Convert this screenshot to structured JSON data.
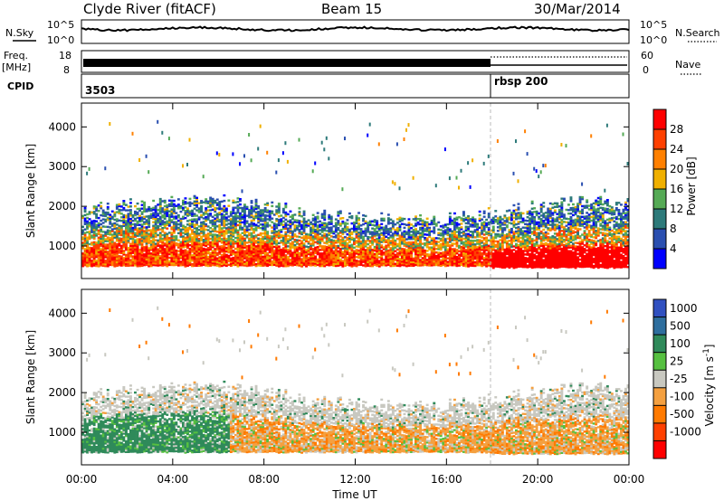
{
  "header": {
    "station": "Clyde River (fitACF)",
    "beam": "Beam 15",
    "date": "30/Mar/2014"
  },
  "strip_panels": {
    "nsky_label": "N.Sky",
    "nsky_top": "10^5",
    "nsky_bottom": "10^0",
    "nsearch_label": "N.Search",
    "nsearch_top": "10^5",
    "nsearch_bottom": "10^0",
    "freq_label": "Freq.",
    "freq_unit": "[MHz]",
    "freq_top": "18",
    "freq_bottom": "8",
    "nave_label": "Nave",
    "nave_top": "60",
    "nave_bottom": "0",
    "cpid_label": "CPID",
    "cpid_values": [
      "3503",
      "rbsp 200"
    ],
    "cpid_change_hour": 18.0
  },
  "colors": {
    "power": [
      "#0000ff",
      "#2a4fb0",
      "#2d7a7a",
      "#55aa55",
      "#f0b000",
      "#ff8000",
      "#ff4000",
      "#ff0000"
    ],
    "velocity": [
      "#3050c0",
      "#2e6e9e",
      "#2f8a5a",
      "#56c040",
      "#c8c8c0",
      "#f4a040",
      "#ff7a00",
      "#ff4000",
      "#ff0000"
    ]
  },
  "chart_data": [
    {
      "type": "heatmap",
      "title": "",
      "xlabel": "Time UT",
      "ylabel": "Slant Range [km]",
      "xlim": [
        0,
        24
      ],
      "ylim": [
        180,
        4600
      ],
      "x_ticks": [
        "00:00",
        "04:00",
        "08:00",
        "12:00",
        "16:00",
        "20:00",
        "00:00"
      ],
      "y_ticks": [
        "1000",
        "2000",
        "3000",
        "4000"
      ],
      "colorbar_label": "Power [dB]",
      "colorbar_ticks": [
        "4",
        "8",
        "12",
        "16",
        "20",
        "24",
        "28"
      ],
      "colorbar_range": [
        0,
        32
      ]
    },
    {
      "type": "heatmap",
      "title": "",
      "xlabel": "Time UT",
      "ylabel": "Slant Range [km]",
      "xlim": [
        0,
        24
      ],
      "ylim": [
        180,
        4600
      ],
      "x_ticks": [
        "00:00",
        "04:00",
        "08:00",
        "12:00",
        "16:00",
        "20:00",
        "00:00"
      ],
      "y_ticks": [
        "1000",
        "2000",
        "3000",
        "4000"
      ],
      "colorbar_label": "Velocity [m s^-1]",
      "colorbar_ticks": [
        "1000",
        "500",
        "100",
        "25",
        "-25",
        "-100",
        "-500",
        "-1000"
      ]
    }
  ]
}
